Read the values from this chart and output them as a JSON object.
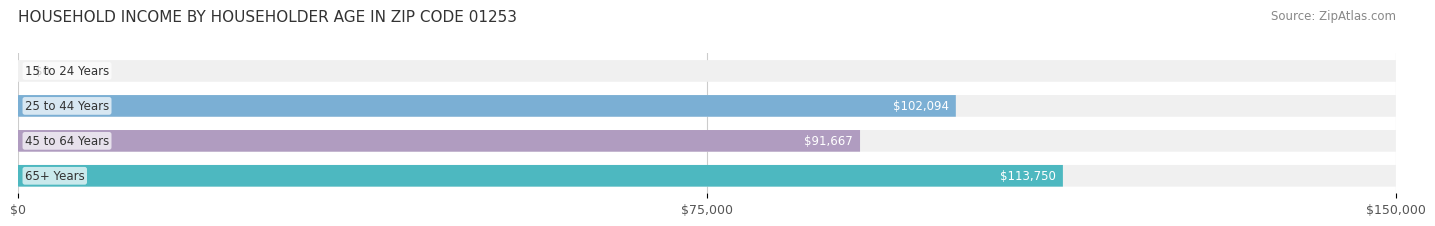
{
  "title": "HOUSEHOLD INCOME BY HOUSEHOLDER AGE IN ZIP CODE 01253",
  "source": "Source: ZipAtlas.com",
  "categories": [
    "15 to 24 Years",
    "25 to 44 Years",
    "45 to 64 Years",
    "65+ Years"
  ],
  "values": [
    0,
    102094,
    91667,
    113750
  ],
  "bar_colors": [
    "#f4a0a0",
    "#7bafd4",
    "#b09cc0",
    "#4db8c0"
  ],
  "bar_bg_color": "#f0f0f0",
  "label_texts": [
    "$0",
    "$102,094",
    "$91,667",
    "$113,750"
  ],
  "xlim": [
    0,
    150000
  ],
  "xticks": [
    0,
    75000,
    150000
  ],
  "xtick_labels": [
    "$0",
    "$75,000",
    "$150,000"
  ],
  "background_color": "#ffffff",
  "bar_height": 0.62,
  "title_fontsize": 11,
  "source_fontsize": 8.5,
  "label_fontsize": 8.5,
  "tick_fontsize": 9,
  "category_fontsize": 8.5
}
